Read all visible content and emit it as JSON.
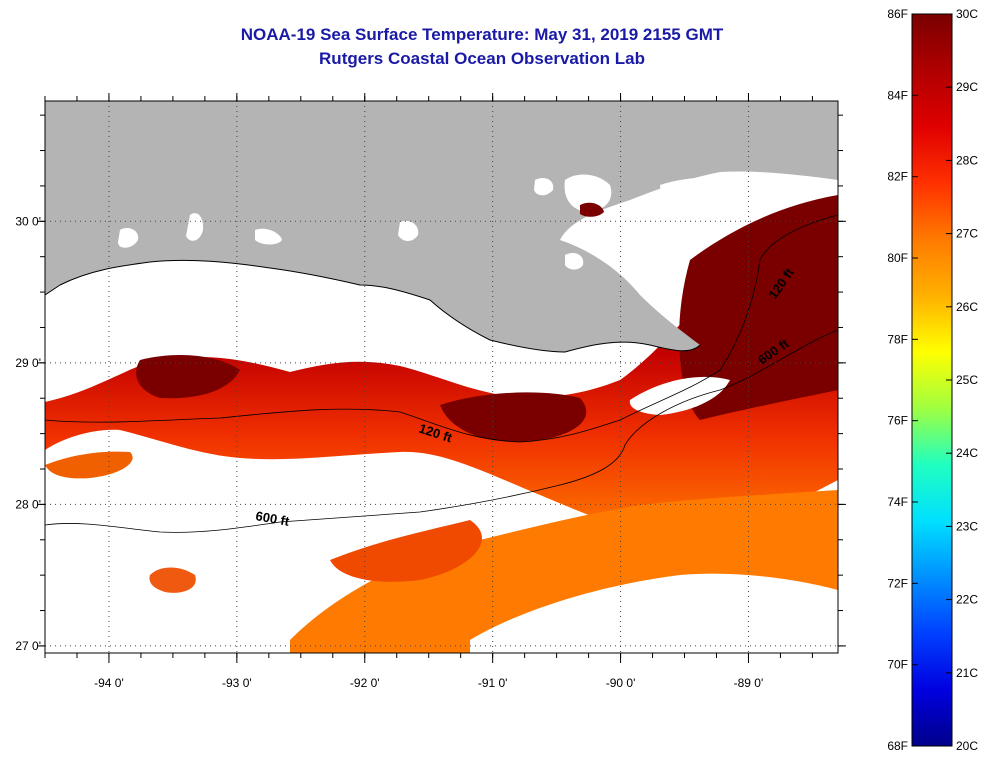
{
  "header": {
    "title_line1": "NOAA-19 Sea Surface Temperature:  May 31, 2019 2155 GMT",
    "title_line2": "Rutgers Coastal Ocean Observation Lab"
  },
  "map": {
    "lon_range": [
      -94.5,
      -88.3
    ],
    "lat_range": [
      26.95,
      30.85
    ],
    "lon_ticks": [
      {
        "value": -94,
        "label": "-94 0'"
      },
      {
        "value": -93,
        "label": "-93 0'"
      },
      {
        "value": -92,
        "label": "-92 0'"
      },
      {
        "value": -91,
        "label": "-91 0'"
      },
      {
        "value": -90,
        "label": "-90 0'"
      },
      {
        "value": -89,
        "label": "-89 0'"
      }
    ],
    "lat_ticks": [
      {
        "value": 30,
        "label": "30 0'"
      },
      {
        "value": 29,
        "label": "29 0'"
      },
      {
        "value": 28,
        "label": "28 0'"
      },
      {
        "value": 27,
        "label": "27 0'"
      }
    ],
    "contour_labels": [
      "120 ft",
      "120 ft",
      "600 ft",
      "600 ft"
    ],
    "colors": {
      "land": "#b4b4b4",
      "cloud": "#ffffff",
      "sst_warm": "#7a0000",
      "sst_mid": "#e81000",
      "sst_cool": "#ff8c00"
    }
  },
  "colorbar": {
    "fahrenheit": [
      "86F",
      "84F",
      "82F",
      "80F",
      "78F",
      "76F",
      "74F",
      "72F",
      "70F",
      "68F"
    ],
    "celsius": [
      "30C",
      "29C",
      "28C",
      "27C",
      "26C",
      "25C",
      "24C",
      "23C",
      "22C",
      "21C",
      "20C"
    ],
    "gradient": [
      "#7a0000",
      "#b00000",
      "#e00000",
      "#ff3000",
      "#ff7a00",
      "#ffb000",
      "#ffff00",
      "#a0ff40",
      "#20ffc0",
      "#00e0ff",
      "#0090ff",
      "#0040ff",
      "#0000e0",
      "#00008a"
    ]
  }
}
